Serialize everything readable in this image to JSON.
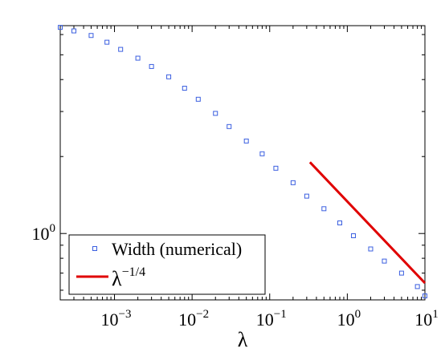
{
  "chart_data": {
    "type": "scatter",
    "title": "",
    "xlabel": "λ",
    "ylabel": "",
    "xscale": "log",
    "yscale": "log",
    "xlim": [
      0.0002,
      10
    ],
    "ylim": [
      0.55,
      6.5
    ],
    "x_ticks": [
      {
        "value": 0.001,
        "base": "10",
        "exp": "−3"
      },
      {
        "value": 0.01,
        "base": "10",
        "exp": "−2"
      },
      {
        "value": 0.1,
        "base": "10",
        "exp": "−1"
      },
      {
        "value": 1,
        "base": "10",
        "exp": "0"
      },
      {
        "value": 10,
        "base": "10",
        "exp": "1"
      }
    ],
    "y_ticks": [
      {
        "value": 1,
        "base": "10",
        "exp": "0"
      }
    ],
    "grid": false,
    "legend_position": "bottom-left",
    "series": [
      {
        "name": "Width (numerical)",
        "kind": "markers",
        "marker": "square",
        "color": "#3b5fe0",
        "x": [
          0.0002,
          0.0003,
          0.0005,
          0.0008,
          0.0012,
          0.002,
          0.003,
          0.005,
          0.008,
          0.012,
          0.02,
          0.03,
          0.05,
          0.08,
          0.12,
          0.2,
          0.3,
          0.5,
          0.8,
          1.2,
          2,
          3,
          5,
          8,
          10
        ],
        "y": [
          6.4,
          6.2,
          5.95,
          5.6,
          5.25,
          4.85,
          4.5,
          4.1,
          3.7,
          3.35,
          2.95,
          2.62,
          2.3,
          2.05,
          1.8,
          1.58,
          1.4,
          1.25,
          1.1,
          0.98,
          0.87,
          0.78,
          0.7,
          0.62,
          0.57
        ]
      },
      {
        "name": "λ",
        "name_exp": "−1/4",
        "kind": "line",
        "color": "#e00000",
        "x": [
          0.33,
          10
        ],
        "y": [
          1.9,
          0.64
        ]
      }
    ]
  }
}
